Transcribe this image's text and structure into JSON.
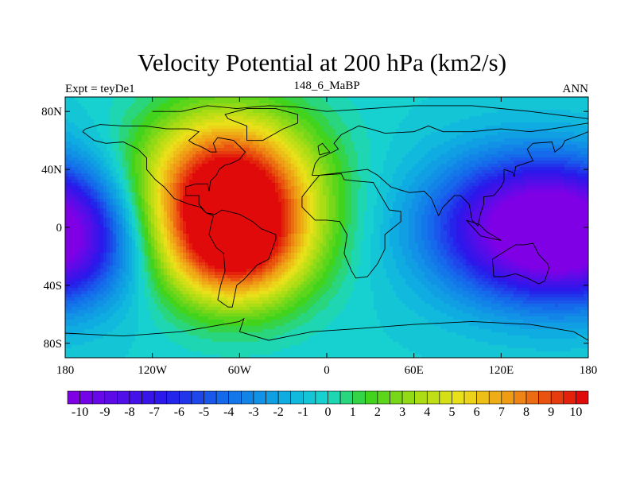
{
  "chart_data": {
    "type": "heatmap",
    "title": "Velocity Potential at 200 hPa (km2/s)",
    "left_label": "Expt = teyDe1",
    "center_label": "148_6_MaBP",
    "right_label": "ANN",
    "x_ticks": [
      {
        "value": -180,
        "label": "180"
      },
      {
        "value": -120,
        "label": "120W"
      },
      {
        "value": -60,
        "label": "60W"
      },
      {
        "value": 0,
        "label": "0"
      },
      {
        "value": 60,
        "label": "60E"
      },
      {
        "value": 120,
        "label": "120E"
      },
      {
        "value": 180,
        "label": "180"
      }
    ],
    "y_ticks": [
      {
        "value": 80,
        "label": "80N"
      },
      {
        "value": 40,
        "label": "40N"
      },
      {
        "value": 0,
        "label": "0"
      },
      {
        "value": -40,
        "label": "40S"
      },
      {
        "value": -80,
        "label": "80S"
      }
    ],
    "xlim": [
      -180,
      180
    ],
    "ylim": [
      -90,
      90
    ],
    "colorbar": {
      "min": -10.5,
      "max": 10.5,
      "step": 0.5,
      "labels": [
        "-10",
        "-9",
        "-8",
        "-7",
        "-6",
        "-5",
        "-4",
        "-3",
        "-2",
        "-1",
        "0",
        "1",
        "2",
        "3",
        "4",
        "5",
        "6",
        "7",
        "8",
        "9",
        "10"
      ]
    },
    "field_features": [
      {
        "name": "max_north",
        "lon": -68,
        "lat": 25,
        "value": 10.2
      },
      {
        "name": "max_south",
        "lon": -62,
        "lat": -18,
        "value": 9.5
      },
      {
        "name": "min_center",
        "lon": 140,
        "lat": 0,
        "value": -10.3
      }
    ],
    "continents": [
      [
        [
          -120,
          80
        ],
        [
          -100,
          80
        ],
        [
          -82,
          84
        ],
        [
          -62,
          82
        ],
        [
          -40,
          84
        ],
        [
          -20,
          83
        ],
        [
          0,
          80
        ],
        [
          30,
          82
        ],
        [
          60,
          84
        ],
        [
          100,
          84
        ],
        [
          140,
          80
        ],
        [
          180,
          75
        ],
        [
          180,
          72
        ],
        [
          155,
          68
        ],
        [
          140,
          66
        ],
        [
          120,
          68
        ],
        [
          100,
          66
        ],
        [
          80,
          66
        ],
        [
          70,
          70
        ],
        [
          60,
          66
        ],
        [
          40,
          65
        ],
        [
          30,
          68
        ],
        [
          22,
          70
        ],
        [
          10,
          64
        ],
        [
          5,
          58
        ],
        [
          8,
          54
        ],
        [
          0,
          50
        ],
        [
          -5,
          48
        ],
        [
          -8,
          44
        ],
        [
          -10,
          36
        ],
        [
          -5,
          36
        ],
        [
          10,
          37
        ],
        [
          12,
          33
        ],
        [
          20,
          32
        ],
        [
          32,
          31
        ],
        [
          36,
          24
        ],
        [
          43,
          12
        ],
        [
          51,
          11
        ],
        [
          51,
          4
        ],
        [
          40,
          -5
        ],
        [
          40,
          -15
        ],
        [
          35,
          -25
        ],
        [
          28,
          -34
        ],
        [
          20,
          -35
        ],
        [
          17,
          -30
        ],
        [
          12,
          -18
        ],
        [
          14,
          -5
        ],
        [
          9,
          4
        ],
        [
          0,
          5
        ],
        [
          -8,
          5
        ],
        [
          -17,
          14
        ],
        [
          -17,
          21
        ],
        [
          -10,
          30
        ],
        [
          -5,
          36
        ],
        [
          28,
          40
        ],
        [
          35,
          36
        ],
        [
          44,
          28
        ],
        [
          50,
          26
        ],
        [
          57,
          24
        ],
        [
          67,
          25
        ],
        [
          72,
          20
        ],
        [
          77,
          8
        ],
        [
          80,
          14
        ],
        [
          88,
          22
        ],
        [
          92,
          22
        ],
        [
          98,
          16
        ],
        [
          100,
          5
        ],
        [
          104,
          1
        ],
        [
          106,
          10
        ],
        [
          108,
          16
        ],
        [
          108,
          21
        ],
        [
          115,
          22
        ],
        [
          120,
          28
        ],
        [
          122,
          32
        ],
        [
          122,
          40
        ],
        [
          128,
          38
        ],
        [
          129,
          35
        ],
        [
          130,
          42
        ],
        [
          136,
          44
        ],
        [
          142,
          46
        ],
        [
          138,
          54
        ],
        [
          142,
          58
        ],
        [
          155,
          59
        ],
        [
          157,
          52
        ],
        [
          162,
          56
        ],
        [
          164,
          60
        ],
        [
          175,
          64
        ],
        [
          180,
          66
        ]
      ],
      [
        [
          -168,
          66
        ],
        [
          -160,
          60
        ],
        [
          -152,
          58
        ],
        [
          -140,
          59
        ],
        [
          -130,
          54
        ],
        [
          -124,
          48
        ],
        [
          -124,
          40
        ],
        [
          -118,
          33
        ],
        [
          -112,
          28
        ],
        [
          -105,
          20
        ],
        [
          -95,
          16
        ],
        [
          -87,
          14
        ],
        [
          -83,
          10
        ],
        [
          -78,
          8
        ],
        [
          -80,
          0
        ],
        [
          -81,
          -5
        ],
        [
          -76,
          -14
        ],
        [
          -71,
          -18
        ],
        [
          -70,
          -30
        ],
        [
          -73,
          -40
        ],
        [
          -75,
          -50
        ],
        [
          -68,
          -55
        ],
        [
          -65,
          -55
        ],
        [
          -62,
          -40
        ],
        [
          -57,
          -36
        ],
        [
          -48,
          -26
        ],
        [
          -40,
          -22
        ],
        [
          -35,
          -8
        ],
        [
          -35,
          -5
        ],
        [
          -45,
          -1
        ],
        [
          -51,
          4
        ],
        [
          -60,
          9
        ],
        [
          -72,
          12
        ],
        [
          -77,
          9
        ],
        [
          -83,
          10
        ],
        [
          -88,
          16
        ],
        [
          -88,
          22
        ],
        [
          -97,
          22
        ],
        [
          -97,
          28
        ],
        [
          -90,
          30
        ],
        [
          -82,
          30
        ],
        [
          -81,
          25
        ],
        [
          -80,
          32
        ],
        [
          -76,
          36
        ],
        [
          -74,
          40
        ],
        [
          -70,
          43
        ],
        [
          -66,
          44
        ],
        [
          -60,
          47
        ],
        [
          -56,
          52
        ],
        [
          -60,
          56
        ],
        [
          -64,
          60
        ],
        [
          -75,
          62
        ],
        [
          -78,
          58
        ],
        [
          -76,
          52
        ],
        [
          -80,
          52
        ],
        [
          -85,
          55
        ],
        [
          -92,
          58
        ],
        [
          -95,
          60
        ],
        [
          -88,
          66
        ],
        [
          -95,
          68
        ],
        [
          -110,
          68
        ],
        [
          -125,
          70
        ],
        [
          -140,
          70
        ],
        [
          -156,
          71
        ],
        [
          -166,
          68
        ],
        [
          -168,
          66
        ]
      ],
      [
        [
          114,
          -22
        ],
        [
          115,
          -34
        ],
        [
          122,
          -34
        ],
        [
          130,
          -32
        ],
        [
          138,
          -35
        ],
        [
          146,
          -39
        ],
        [
          150,
          -37
        ],
        [
          153,
          -28
        ],
        [
          152,
          -25
        ],
        [
          146,
          -19
        ],
        [
          142,
          -11
        ],
        [
          136,
          -12
        ],
        [
          130,
          -12
        ],
        [
          125,
          -15
        ],
        [
          114,
          -22
        ]
      ],
      [
        [
          -55,
          60
        ],
        [
          -44,
          60
        ],
        [
          -30,
          68
        ],
        [
          -20,
          72
        ],
        [
          -20,
          78
        ],
        [
          -35,
          82
        ],
        [
          -55,
          82
        ],
        [
          -70,
          78
        ],
        [
          -68,
          75
        ],
        [
          -55,
          70
        ],
        [
          -55,
          60
        ]
      ],
      [
        [
          -180,
          -73
        ],
        [
          -140,
          -75
        ],
        [
          -100,
          -72
        ],
        [
          -60,
          -65
        ],
        [
          -57,
          -63
        ],
        [
          -60,
          -72
        ],
        [
          -40,
          -78
        ],
        [
          -10,
          -72
        ],
        [
          20,
          -70
        ],
        [
          60,
          -67
        ],
        [
          100,
          -65
        ],
        [
          140,
          -67
        ],
        [
          170,
          -72
        ],
        [
          180,
          -78
        ],
        [
          180,
          -90
        ],
        [
          -180,
          -90
        ],
        [
          -180,
          -73
        ]
      ],
      [
        [
          96,
          5
        ],
        [
          106,
          -6
        ],
        [
          115,
          -8
        ],
        [
          120,
          -9
        ],
        [
          110,
          -3
        ],
        [
          105,
          2
        ],
        [
          96,
          5
        ]
      ],
      [
        [
          -5,
          50
        ],
        [
          2,
          52
        ],
        [
          -3,
          58
        ],
        [
          -6,
          56
        ],
        [
          -5,
          50
        ]
      ]
    ]
  }
}
